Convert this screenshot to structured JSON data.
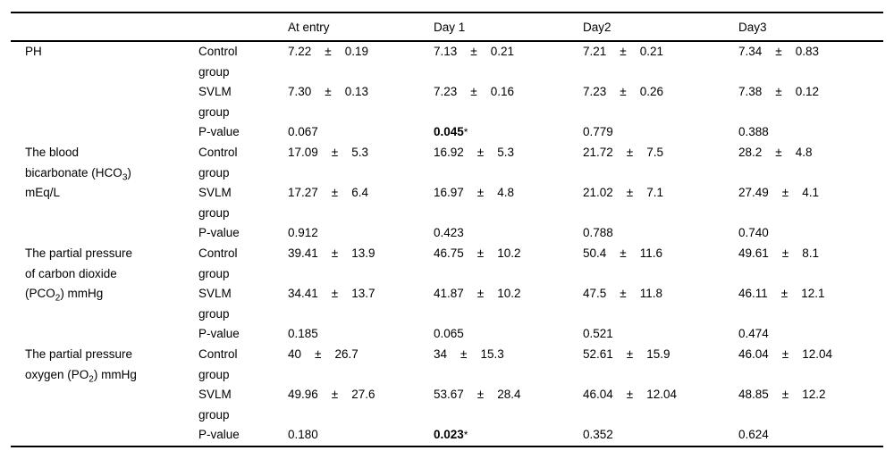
{
  "colors": {
    "background": "#ffffff",
    "text": "#000000",
    "rule": "#000000"
  },
  "table": {
    "pm": "±",
    "headers": [
      "",
      "",
      "At entry",
      "Day 1",
      "Day2",
      "Day3"
    ],
    "sections": [
      {
        "name_lines": [
          {
            "pre": "PH"
          }
        ],
        "rows": [
          {
            "label_lines": [
              "Control",
              "group"
            ],
            "cells": [
              {
                "m": "7.22",
                "sd": "0.19"
              },
              {
                "m": "7.13",
                "sd": "0.21"
              },
              {
                "m": "7.21",
                "sd": "0.21"
              },
              {
                "m": "7.34",
                "sd": "0.83"
              }
            ]
          },
          {
            "label_lines": [
              "SVLM",
              "group"
            ],
            "cells": [
              {
                "m": "7.30",
                "sd": "0.13"
              },
              {
                "m": "7.23",
                "sd": "0.16"
              },
              {
                "m": "7.23",
                "sd": "0.26"
              },
              {
                "m": "7.38",
                "sd": "0.12"
              }
            ]
          },
          {
            "label_lines": [
              "P-value"
            ],
            "pvalues": [
              {
                "v": "0.067"
              },
              {
                "v": "0.045",
                "star": "*",
                "bold": true
              },
              {
                "v": "0.779"
              },
              {
                "v": "0.388"
              }
            ]
          }
        ]
      },
      {
        "name_lines": [
          {
            "pre": "The blood"
          },
          {
            "pre": "bicarbonate (HCO",
            "sub": "3",
            "post": ")"
          },
          {
            "pre": "mEq/L"
          }
        ],
        "rows": [
          {
            "label_lines": [
              "Control",
              "group"
            ],
            "cells": [
              {
                "m": "17.09",
                "sd": "5.3"
              },
              {
                "m": "16.92",
                "sd": "5.3"
              },
              {
                "m": "21.72",
                "sd": "7.5"
              },
              {
                "m": "28.2",
                "sd": "4.8"
              }
            ]
          },
          {
            "label_lines": [
              "SVLM",
              "group"
            ],
            "cells": [
              {
                "m": "17.27",
                "sd": "6.4"
              },
              {
                "m": "16.97",
                "sd": "4.8"
              },
              {
                "m": "21.02",
                "sd": "7.1"
              },
              {
                "m": "27.49",
                "sd": "4.1"
              }
            ]
          },
          {
            "label_lines": [
              "P-value"
            ],
            "pvalues": [
              {
                "v": "0.912"
              },
              {
                "v": "0.423"
              },
              {
                "v": "0.788"
              },
              {
                "v": "0.740"
              }
            ]
          }
        ]
      },
      {
        "name_lines": [
          {
            "pre": "The partial pressure"
          },
          {
            "pre": "of carbon dioxide"
          },
          {
            "pre": "(PCO",
            "sub": "2",
            "post": ") mmHg"
          }
        ],
        "rows": [
          {
            "label_lines": [
              "Control",
              "group"
            ],
            "cells": [
              {
                "m": "39.41",
                "sd": "13.9"
              },
              {
                "m": "46.75",
                "sd": "10.2"
              },
              {
                "m": "50.4",
                "sd": "11.6"
              },
              {
                "m": "49.61",
                "sd": "8.1"
              }
            ]
          },
          {
            "label_lines": [
              "SVLM",
              "group"
            ],
            "cells": [
              {
                "m": "34.41",
                "sd": "13.7"
              },
              {
                "m": "41.87",
                "sd": "10.2"
              },
              {
                "m": "47.5",
                "sd": "11.8"
              },
              {
                "m": "46.11",
                "sd": "12.1"
              }
            ]
          },
          {
            "label_lines": [
              "P-value"
            ],
            "pvalues": [
              {
                "v": "0.185"
              },
              {
                "v": "0.065"
              },
              {
                "v": "0.521"
              },
              {
                "v": "0.474"
              }
            ]
          }
        ]
      },
      {
        "name_lines": [
          {
            "pre": "The partial pressure"
          },
          {
            "pre": "oxygen (PO",
            "sub": "2",
            "post": ") mmHg"
          }
        ],
        "rows": [
          {
            "label_lines": [
              "Control",
              "group"
            ],
            "cells": [
              {
                "m": "40",
                "sd": "26.7"
              },
              {
                "m": "34",
                "sd": "15.3"
              },
              {
                "m": "52.61",
                "sd": "15.9"
              },
              {
                "m": "46.04",
                "sd": "12.04"
              }
            ]
          },
          {
            "label_lines": [
              "SVLM",
              "group"
            ],
            "cells": [
              {
                "m": "49.96",
                "sd": "27.6"
              },
              {
                "m": "53.67",
                "sd": "28.4"
              },
              {
                "m": "46.04",
                "sd": "12.04"
              },
              {
                "m": "48.85",
                "sd": "12.2"
              }
            ]
          },
          {
            "label_lines": [
              "P-value"
            ],
            "pvalues": [
              {
                "v": "0.180"
              },
              {
                "v": "0.023",
                "star": "*",
                "bold": true
              },
              {
                "v": "0.352"
              },
              {
                "v": "0.624"
              }
            ]
          }
        ]
      }
    ]
  }
}
